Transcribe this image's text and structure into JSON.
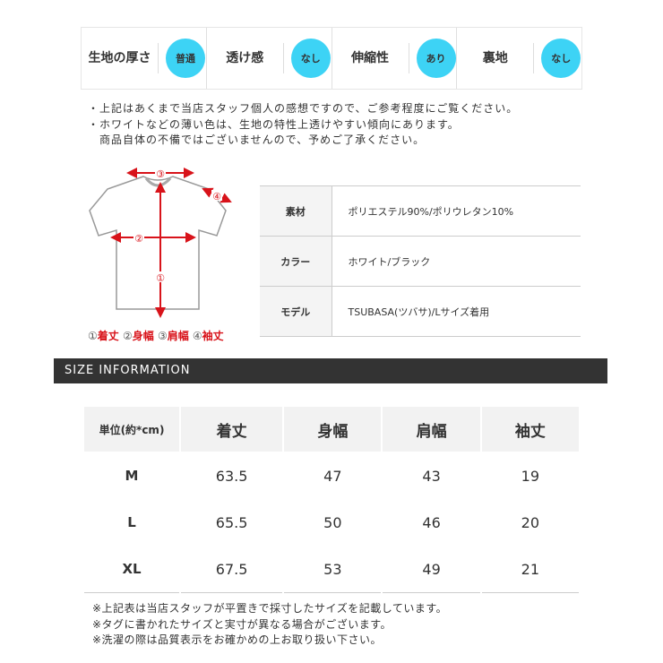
{
  "feel": [
    {
      "label": "生地の厚さ",
      "value": "普通"
    },
    {
      "label": "透け感",
      "value": "なし"
    },
    {
      "label": "伸縮性",
      "value": "あり"
    },
    {
      "label": "裏地",
      "value": "なし"
    }
  ],
  "notes": [
    "・上記はあくまで当店スタッフ個人の感想ですので、ご参考程度にご覧ください。",
    "・ホワイトなどの薄い色は、生地の特性上透けやすい傾向にあります。",
    "　商品自体の不備ではございませんので、予めご了承ください。"
  ],
  "diagram": {
    "marks": [
      "③",
      "②",
      "①",
      "④"
    ],
    "legend": [
      {
        "n": "①",
        "t": "着丈"
      },
      {
        "n": "②",
        "t": "身幅"
      },
      {
        "n": "③",
        "t": "肩幅"
      },
      {
        "n": "④",
        "t": "袖丈"
      }
    ]
  },
  "spec": [
    {
      "label": "素材",
      "value": "ポリエステル90%/ポリウレタン10%"
    },
    {
      "label": "カラー",
      "value": "ホワイト/ブラック"
    },
    {
      "label": "モデル",
      "value": "TSUBASA(ツバサ)/Lサイズ着用"
    }
  ],
  "section_title": "SIZE INFORMATION",
  "size_table": {
    "headers": [
      "単位(約*cm)",
      "着丈",
      "身幅",
      "肩幅",
      "袖丈"
    ],
    "rows": [
      [
        "M",
        "63.5",
        "47",
        "43",
        "19"
      ],
      [
        "L",
        "65.5",
        "50",
        "46",
        "20"
      ],
      [
        "XL",
        "67.5",
        "53",
        "49",
        "21"
      ]
    ]
  },
  "footnotes": [
    "※上記表は当店スタッフが平置きで採寸したサイズを記載しています。",
    "※タグに書かれたサイズと実寸が異なる場合がございます。",
    "※洗濯の際は品質表示をお確かめの上お取り扱い下さい。"
  ],
  "colors": {
    "badge": "#3dd3f5",
    "accent": "#d8131a",
    "bar": "#333333"
  }
}
